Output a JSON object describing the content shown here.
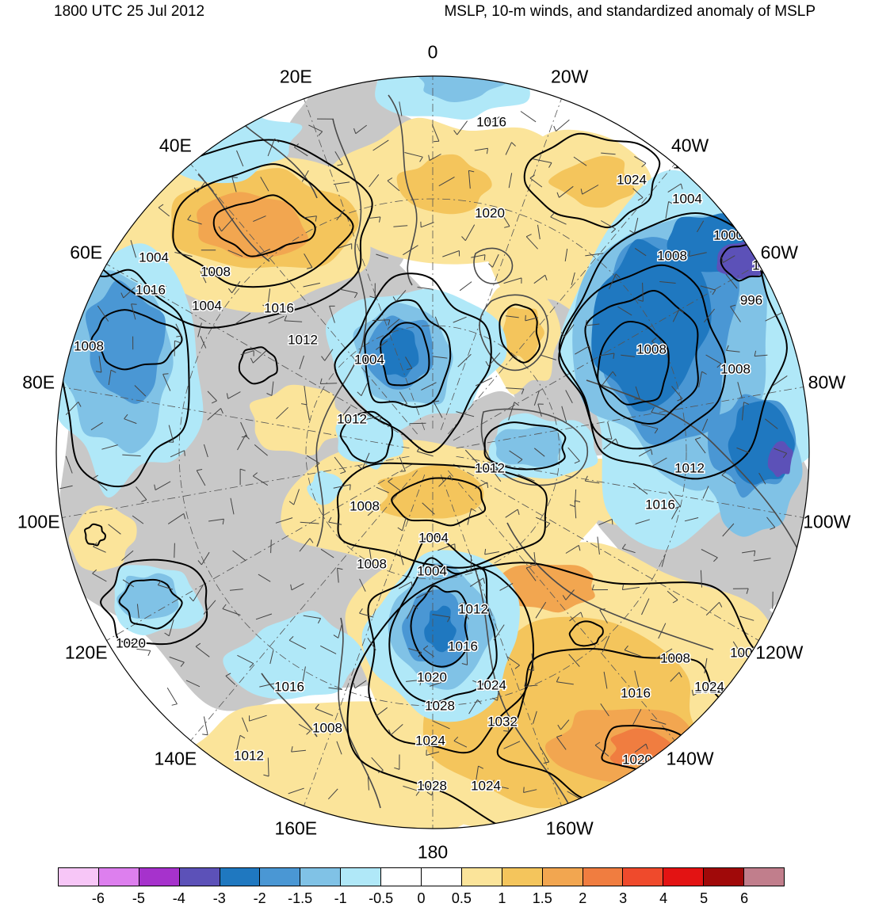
{
  "header": {
    "left": "1800 UTC 25 Jul 2012",
    "right": "MSLP, 10-m winds, and standardized anomaly of MSLP"
  },
  "map": {
    "projection": "north-polar-stereographic",
    "center_lon_at_top": "0",
    "longitude_labels": [
      "0",
      "20W",
      "40W",
      "60W",
      "80W",
      "100W",
      "120W",
      "140W",
      "160W",
      "180",
      "160E",
      "140E",
      "120E",
      "100E",
      "80E",
      "60E",
      "40E",
      "20E"
    ],
    "pressure_centers": [
      {
        "label": "996",
        "type": "low"
      },
      {
        "label": "1000",
        "type": "low"
      },
      {
        "label": "1004",
        "type": "low"
      },
      {
        "label": "1032",
        "type": "high"
      },
      {
        "label": "1028",
        "type": "high"
      },
      {
        "label": "1024",
        "type": "high"
      }
    ],
    "contour_labels": [
      "1012",
      "1016",
      "1020",
      "1024",
      "1012",
      "1004",
      "1000",
      "1008",
      "1004",
      "996",
      "1008",
      "1008",
      "1012",
      "1016",
      "1012",
      "1008",
      "1004",
      "1008",
      "1004",
      "1012",
      "1016",
      "1020",
      "1024",
      "1028",
      "1032",
      "1024",
      "1016",
      "1020",
      "1028",
      "1024",
      "1008",
      "1008",
      "1012",
      "1016",
      "1012",
      "1008",
      "1004",
      "1016",
      "1008",
      "1012",
      "1004",
      "1012",
      "1008",
      "1004",
      "1016",
      "1020",
      "1024"
    ]
  },
  "colorbar": {
    "colors": [
      "#f7c6f7",
      "#dd7fee",
      "#a632cc",
      "#5c51b8",
      "#1f78c0",
      "#4a97d4",
      "#80c2e6",
      "#b0e8f8",
      "#ffffff",
      "#ffffff",
      "#fbe49a",
      "#f4c55c",
      "#f2a650",
      "#f07d40",
      "#ef4a2c",
      "#e31313",
      "#a00909",
      "#c17e8c"
    ],
    "tick_labels": [
      "-6",
      "-5",
      "-4",
      "-3",
      "-2",
      "-1.5",
      "-1",
      "-0.5",
      "0",
      "0.5",
      "1",
      "1.5",
      "2",
      "3",
      "4",
      "5",
      "6"
    ]
  }
}
